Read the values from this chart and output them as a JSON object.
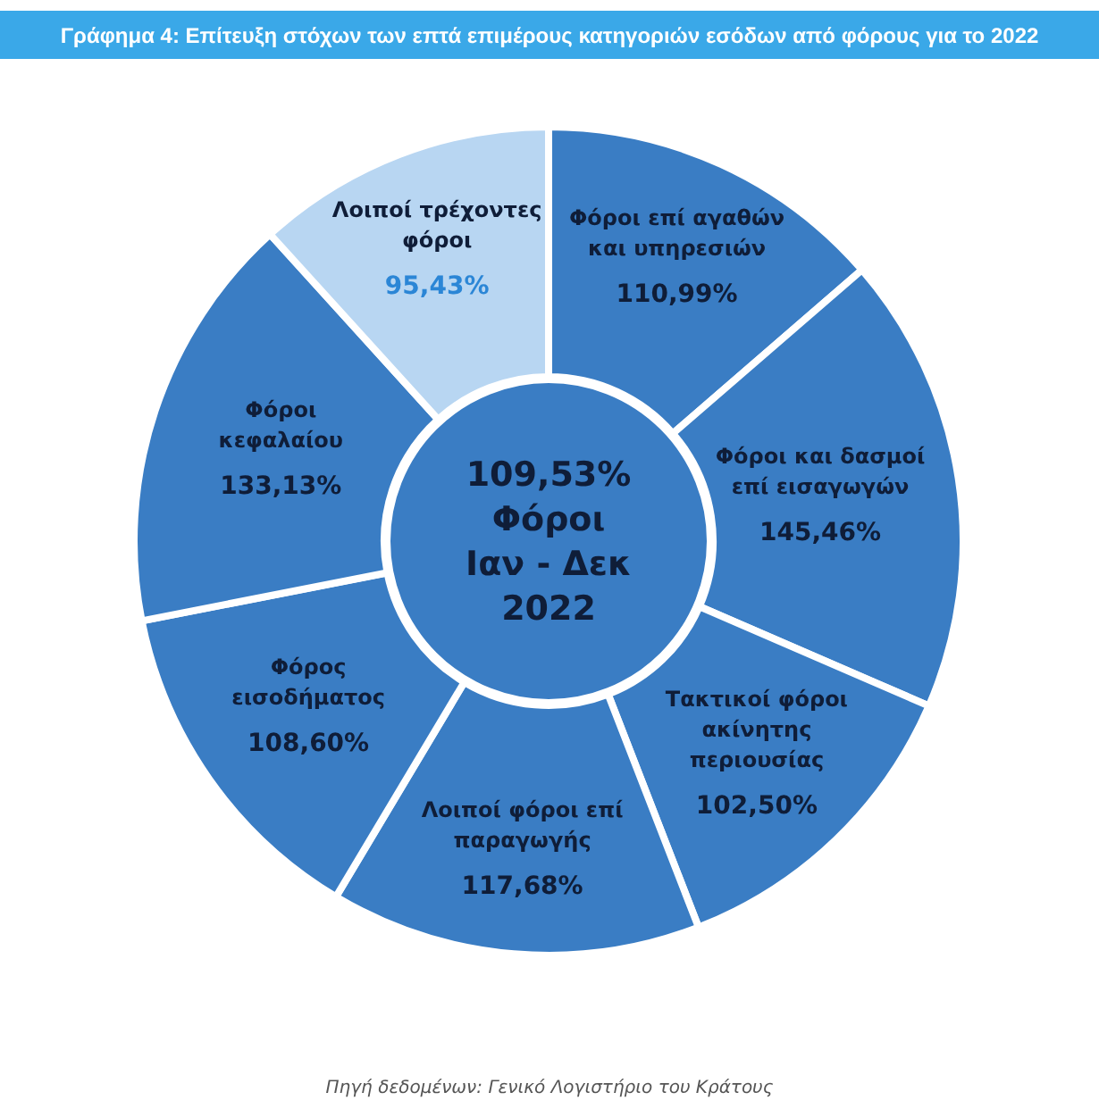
{
  "chart_data": {
    "type": "donut",
    "title": "Γράφημα 4: Επίτευξη στόχων των επτά επιμέρους κατηγοριών εσόδων από φόρους για το 2022",
    "categories": [
      "Φόροι επί αγαθών και υπηρεσιών",
      "Φόροι και δασμοί επί εισαγωγών",
      "Τακτικοί φόροι ακίνητης περιουσίας",
      "Λοιποί φόροι επί παραγωγής",
      "Φόρος εισοδήματος",
      "Φόροι κεφαλαίου",
      "Λοιποί τρέχοντες φόροι"
    ],
    "values": [
      110.99,
      145.46,
      102.5,
      117.68,
      108.6,
      133.13,
      95.43
    ],
    "value_labels": [
      "110,99%",
      "145,46%",
      "102,50%",
      "117,68%",
      "108,60%",
      "133,13%",
      "95,43%"
    ],
    "colors": [
      "#3a7dc4",
      "#3a7dc4",
      "#3a7dc4",
      "#3a7dc4",
      "#3a7dc4",
      "#3a7dc4",
      "#b8d6f2"
    ],
    "annotations": [
      "109,53%",
      "Φόροι",
      "Ιαν - Δεκ",
      "2022",
      "Πηγή δεδομένων: Γενικό Λογιστήριο του Κράτους"
    ]
  }
}
